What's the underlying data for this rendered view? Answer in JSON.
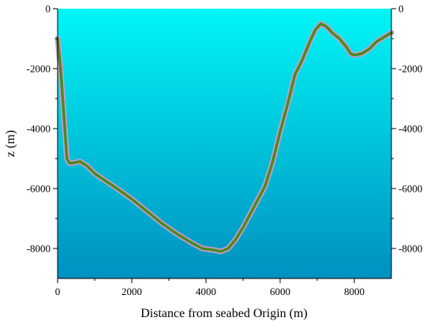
{
  "chart_data": {
    "type": "line",
    "title": "",
    "xlabel": "Distance from seabed Origin (m)",
    "ylabel": "z (m)",
    "xlim": [
      0,
      9000
    ],
    "ylim": [
      -9000,
      0
    ],
    "x_ticks": [
      0,
      2000,
      4000,
      6000,
      8000
    ],
    "y_ticks": [
      0,
      -2000,
      -4000,
      -6000,
      -8000
    ],
    "x_tick_labels": [
      "0",
      "2000",
      "4000",
      "6000",
      "8000"
    ],
    "y_tick_labels_left": [
      "0",
      "-2000",
      "-4000",
      "-6000",
      "-8000"
    ],
    "y_tick_labels_right": [
      "0",
      "-2000",
      "-4000",
      "-6000",
      "-8000"
    ],
    "grid": false,
    "colors": {
      "water_top": "#00f6f6",
      "water_bottom": "#0090bf",
      "seabed_line": "#4a8a1e",
      "seabed_halo": "#c89bd0"
    },
    "series": [
      {
        "x": [
          0,
          80,
          150,
          250,
          320,
          400,
          600,
          800,
          1000,
          1300,
          1600,
          2000,
          2400,
          2800,
          3200,
          3600,
          3900,
          4200,
          4400,
          4600,
          4800,
          5000,
          5300,
          5600,
          5800,
          6000,
          6200,
          6400,
          6600,
          6800,
          6950,
          7100,
          7250,
          7400,
          7600,
          7800,
          7900,
          8000,
          8200,
          8400,
          8600,
          8800,
          9000
        ],
        "y": [
          -1000,
          -2000,
          -3200,
          -5000,
          -5150,
          -5150,
          -5100,
          -5250,
          -5500,
          -5750,
          -6000,
          -6350,
          -6750,
          -7150,
          -7500,
          -7800,
          -8000,
          -8050,
          -8100,
          -8000,
          -7700,
          -7300,
          -6600,
          -5900,
          -5100,
          -4100,
          -3200,
          -2200,
          -1700,
          -1100,
          -700,
          -500,
          -600,
          -800,
          -1000,
          -1300,
          -1500,
          -1550,
          -1500,
          -1350,
          -1100,
          -950,
          -800
        ]
      }
    ]
  }
}
